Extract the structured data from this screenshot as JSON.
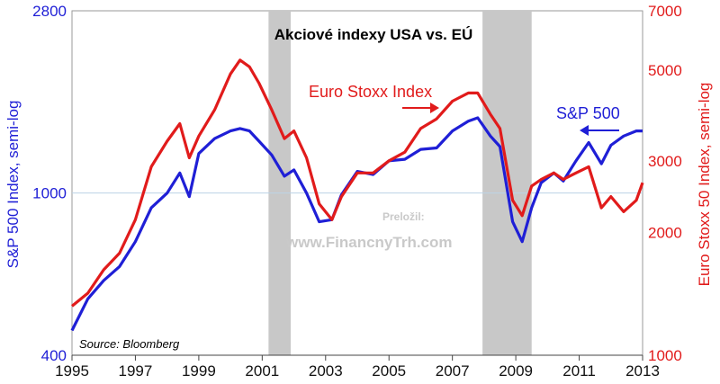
{
  "chart_data": {
    "type": "line",
    "title": "Akciové indexy USA vs. EÚ",
    "x_ticks": [
      "1995",
      "1997",
      "1999",
      "2001",
      "2003",
      "2005",
      "2007",
      "2009",
      "2011",
      "2013"
    ],
    "xlim": [
      1995,
      2013
    ],
    "left_axis": {
      "label": "S&P 500 Index, semi-log",
      "scale": "log",
      "ylim": [
        400,
        2800
      ],
      "ticks": [
        "400",
        "1000",
        "2800"
      ],
      "color": "#1f1fd6"
    },
    "right_axis": {
      "label": "Euro Stoxx 50 Index, semi-log",
      "scale": "log",
      "ylim": [
        1000,
        7000
      ],
      "ticks": [
        "1000",
        "2000",
        "3000",
        "5000",
        "7000"
      ],
      "color": "#e11b1b"
    },
    "recession_bands": [
      [
        2001.2,
        2001.9
      ],
      [
        2007.95,
        2009.5
      ]
    ],
    "series": [
      {
        "name": "S&P 500",
        "axis": "left",
        "color": "#1f1fd6",
        "x": [
          1995.0,
          1995.5,
          1996.0,
          1996.5,
          1997.0,
          1997.5,
          1998.0,
          1998.4,
          1998.7,
          1999.0,
          1999.5,
          2000.0,
          2000.3,
          2000.6,
          2000.9,
          2001.3,
          2001.7,
          2002.0,
          2002.4,
          2002.8,
          2003.2,
          2003.5,
          2004.0,
          2004.5,
          2005.0,
          2005.5,
          2006.0,
          2006.5,
          2007.0,
          2007.5,
          2007.8,
          2008.2,
          2008.5,
          2008.9,
          2009.2,
          2009.5,
          2009.8,
          2010.2,
          2010.5,
          2010.9,
          2011.3,
          2011.7,
          2012.0,
          2012.4,
          2012.8,
          2013.0
        ],
        "values": [
          460,
          550,
          610,
          660,
          760,
          920,
          1000,
          1120,
          980,
          1250,
          1360,
          1420,
          1440,
          1420,
          1340,
          1240,
          1100,
          1140,
          1000,
          850,
          860,
          990,
          1130,
          1110,
          1200,
          1210,
          1280,
          1290,
          1420,
          1500,
          1530,
          1380,
          1300,
          850,
          760,
          920,
          1060,
          1120,
          1070,
          1200,
          1330,
          1180,
          1310,
          1380,
          1420,
          1420
        ]
      },
      {
        "name": "Euro Stoxx Index",
        "axis": "right",
        "color": "#e11b1b",
        "x": [
          1995.0,
          1995.5,
          1996.0,
          1996.5,
          1997.0,
          1997.5,
          1998.0,
          1998.4,
          1998.7,
          1999.0,
          1999.5,
          2000.0,
          2000.3,
          2000.6,
          2000.9,
          2001.3,
          2001.7,
          2002.0,
          2002.4,
          2002.8,
          2003.2,
          2003.5,
          2004.0,
          2004.5,
          2005.0,
          2005.5,
          2006.0,
          2006.5,
          2007.0,
          2007.5,
          2007.8,
          2008.2,
          2008.5,
          2008.9,
          2009.2,
          2009.5,
          2009.8,
          2010.2,
          2010.5,
          2010.9,
          2011.3,
          2011.7,
          2012.0,
          2012.4,
          2012.8,
          2013.0
        ],
        "values": [
          1320,
          1420,
          1620,
          1780,
          2150,
          2900,
          3350,
          3700,
          3050,
          3450,
          4000,
          4900,
          5300,
          5100,
          4650,
          4000,
          3400,
          3550,
          3050,
          2350,
          2150,
          2450,
          2800,
          2800,
          3000,
          3150,
          3600,
          3800,
          4200,
          4400,
          4400,
          3900,
          3600,
          2400,
          2200,
          2600,
          2700,
          2800,
          2700,
          2800,
          2900,
          2300,
          2450,
          2250,
          2400,
          2650
        ]
      }
    ]
  },
  "annotations": {
    "euro_label": "Euro Stoxx Index",
    "sp_label": "S&P 500",
    "source": "Source:  Bloomberg",
    "watermark_top": "Preložil:",
    "watermark_main": "www.FinancnyTrh.com"
  }
}
